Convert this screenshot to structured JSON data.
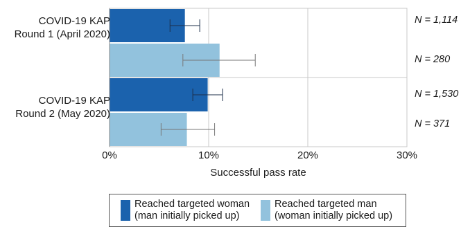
{
  "chart_data": {
    "type": "bar",
    "orientation": "horizontal",
    "categories": [
      [
        "COVID-19 KAP",
        "Round 1 (April 2020)"
      ],
      [
        "COVID-19 KAP",
        "Round 2 (May 2020)"
      ]
    ],
    "series": [
      {
        "name": [
          "Reached targeted woman",
          "(man initially picked up)"
        ],
        "color": "#1b62ad",
        "values": [
          7.6,
          9.9
        ],
        "error": [
          [
            6.1,
            9.1
          ],
          [
            8.4,
            11.4
          ]
        ],
        "n": [
          "N = 1,114",
          "N = 1,530"
        ]
      },
      {
        "name": [
          "Reached targeted man",
          "(woman initially picked up)"
        ],
        "color": "#92c2dd",
        "values": [
          11.1,
          7.8
        ],
        "error": [
          [
            7.4,
            14.7
          ],
          [
            5.2,
            10.6
          ]
        ],
        "n": [
          "N = 280",
          "N = 371"
        ]
      }
    ],
    "xlabel": "Successful pass rate",
    "xlim": [
      0,
      30
    ],
    "xticks": [
      0,
      10,
      20,
      30
    ],
    "xtick_labels": [
      "0%",
      "10%",
      "20%",
      "30%"
    ],
    "grid": true,
    "legend_position": "bottom"
  }
}
